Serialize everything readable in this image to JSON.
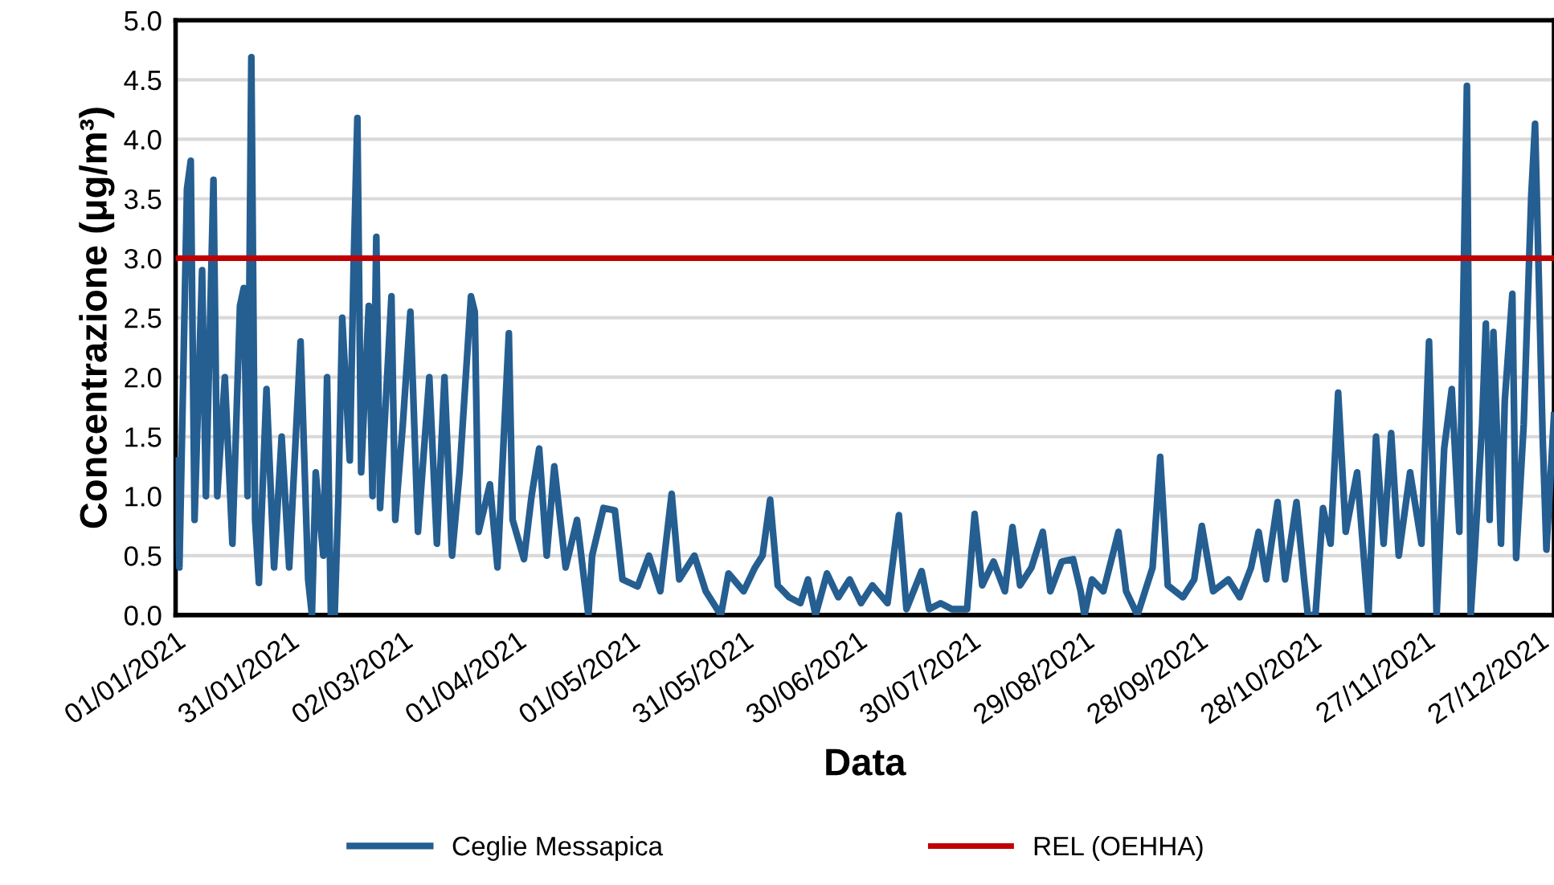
{
  "chart_data": {
    "type": "line",
    "xlabel": "Data",
    "ylabel": "Concentrazione (μg/m³)",
    "x": [
      "2021-01-01",
      "2021-01-02",
      "2021-01-04",
      "2021-01-05",
      "2021-01-06",
      "2021-01-08",
      "2021-01-09",
      "2021-01-11",
      "2021-01-12",
      "2021-01-14",
      "2021-01-16",
      "2021-01-18",
      "2021-01-19",
      "2021-01-20",
      "2021-01-21",
      "2021-01-22",
      "2021-01-23",
      "2021-01-25",
      "2021-01-27",
      "2021-01-29",
      "2021-01-31",
      "2021-02-03",
      "2021-02-05",
      "2021-02-06",
      "2021-02-07",
      "2021-02-09",
      "2021-02-10",
      "2021-02-11",
      "2021-02-12",
      "2021-02-13",
      "2021-02-14",
      "2021-02-16",
      "2021-02-17",
      "2021-02-18",
      "2021-02-19",
      "2021-02-21",
      "2021-02-22",
      "2021-02-23",
      "2021-02-24",
      "2021-02-27",
      "2021-02-28",
      "2021-03-02",
      "2021-03-04",
      "2021-03-06",
      "2021-03-09",
      "2021-03-11",
      "2021-03-13",
      "2021-03-15",
      "2021-03-17",
      "2021-03-20",
      "2021-03-21",
      "2021-03-22",
      "2021-03-25",
      "2021-03-27",
      "2021-03-30",
      "2021-03-31",
      "2021-04-03",
      "2021-04-05",
      "2021-04-07",
      "2021-04-09",
      "2021-04-11",
      "2021-04-14",
      "2021-04-17",
      "2021-04-20",
      "2021-04-21",
      "2021-04-24",
      "2021-04-27",
      "2021-04-29",
      "2021-05-03",
      "2021-05-06",
      "2021-05-09",
      "2021-05-12",
      "2021-05-14",
      "2021-05-18",
      "2021-05-21",
      "2021-05-25",
      "2021-05-27",
      "2021-05-31",
      "2021-06-03",
      "2021-06-05",
      "2021-06-07",
      "2021-06-09",
      "2021-06-12",
      "2021-06-15",
      "2021-06-17",
      "2021-06-19",
      "2021-06-22",
      "2021-06-25",
      "2021-06-28",
      "2021-07-01",
      "2021-07-04",
      "2021-07-08",
      "2021-07-11",
      "2021-07-13",
      "2021-07-17",
      "2021-07-19",
      "2021-07-22",
      "2021-07-25",
      "2021-07-29",
      "2021-07-31",
      "2021-08-02",
      "2021-08-05",
      "2021-08-08",
      "2021-08-10",
      "2021-08-12",
      "2021-08-15",
      "2021-08-18",
      "2021-08-20",
      "2021-08-23",
      "2021-08-26",
      "2021-08-28",
      "2021-08-29",
      "2021-08-31",
      "2021-09-03",
      "2021-09-07",
      "2021-09-09",
      "2021-09-12",
      "2021-09-14",
      "2021-09-16",
      "2021-09-18",
      "2021-09-20",
      "2021-09-24",
      "2021-09-27",
      "2021-09-29",
      "2021-10-02",
      "2021-10-06",
      "2021-10-09",
      "2021-10-12",
      "2021-10-14",
      "2021-10-16",
      "2021-10-19",
      "2021-10-21",
      "2021-10-24",
      "2021-10-26",
      "2021-10-27",
      "2021-10-29",
      "2021-10-31",
      "2021-11-02",
      "2021-11-04",
      "2021-11-06",
      "2021-11-09",
      "2021-11-11",
      "2021-11-12",
      "2021-11-14",
      "2021-11-16",
      "2021-11-18",
      "2021-11-20",
      "2021-11-23",
      "2021-11-26",
      "2021-11-28",
      "2021-11-30",
      "2021-12-02",
      "2021-12-04",
      "2021-12-06",
      "2021-12-08",
      "2021-12-09",
      "2021-12-10",
      "2021-12-12",
      "2021-12-13",
      "2021-12-14",
      "2021-12-15",
      "2021-12-17",
      "2021-12-18",
      "2021-12-20",
      "2021-12-21",
      "2021-12-23",
      "2021-12-25",
      "2021-12-26",
      "2021-12-28",
      "2021-12-29",
      "2021-12-31"
    ],
    "series": [
      {
        "name": "Ceglie Messapica",
        "color": "#255e91",
        "values": [
          1.3,
          0.4,
          3.58,
          3.82,
          0.8,
          2.9,
          1.0,
          3.66,
          1.0,
          2.0,
          0.6,
          2.6,
          2.75,
          1.0,
          4.69,
          0.8,
          0.27,
          1.9,
          0.4,
          1.5,
          0.4,
          2.3,
          0.3,
          0,
          1.2,
          0.5,
          2.0,
          0,
          0,
          1.0,
          2.5,
          1.3,
          2.92,
          4.18,
          1.2,
          2.6,
          1.0,
          3.18,
          0.9,
          2.68,
          0.8,
          1.6,
          2.55,
          0.7,
          2.0,
          0.6,
          2.0,
          0.5,
          1.2,
          2.68,
          2.55,
          0.7,
          1.1,
          0.4,
          2.37,
          0.8,
          0.47,
          1.0,
          1.4,
          0.5,
          1.25,
          0.4,
          0.8,
          0,
          0.5,
          0.9,
          0.88,
          0.3,
          0.24,
          0.5,
          0.2,
          1.02,
          0.3,
          0.5,
          0.2,
          0,
          0.35,
          0.2,
          0.4,
          0.5,
          0.97,
          0.25,
          0.15,
          0.1,
          0.3,
          0,
          0.35,
          0.15,
          0.3,
          0.1,
          0.25,
          0.1,
          0.84,
          0.05,
          0.37,
          0.05,
          0.1,
          0.05,
          0.05,
          0.85,
          0.25,
          0.45,
          0.2,
          0.74,
          0.25,
          0.4,
          0.7,
          0.2,
          0.45,
          0.47,
          0.2,
          0,
          0.3,
          0.2,
          0.7,
          0.2,
          0,
          0.2,
          0.4,
          1.33,
          0.25,
          0.15,
          0.3,
          0.75,
          0.2,
          0.3,
          0.15,
          0.4,
          0.7,
          0.3,
          0.95,
          0.3,
          0.95,
          0.3,
          0,
          0,
          0.9,
          0.6,
          1.87,
          0.7,
          1.2,
          0.4,
          0,
          1.5,
          0.6,
          1.53,
          0.5,
          1.2,
          0.6,
          2.3,
          0,
          1.4,
          1.9,
          0.7,
          4.45,
          0,
          0.5,
          1.6,
          2.45,
          0.8,
          2.38,
          0.6,
          1.8,
          2.7,
          0.48,
          1.6,
          3.53,
          4.13,
          1.5,
          0.55,
          1.68
        ]
      }
    ],
    "ref_lines": [
      {
        "axis": "y",
        "value": 3.0,
        "label": "REL (OEHHA)",
        "color": "#c00000"
      }
    ],
    "xlim": [
      "2021-01-01",
      "2021-12-31"
    ],
    "xticks": [
      {
        "value": "2021-01-01",
        "label": "01/01/2021"
      },
      {
        "value": "2021-01-31",
        "label": "31/01/2021"
      },
      {
        "value": "2021-03-02",
        "label": "02/03/2021"
      },
      {
        "value": "2021-04-01",
        "label": "01/04/2021"
      },
      {
        "value": "2021-05-01",
        "label": "01/05/2021"
      },
      {
        "value": "2021-05-31",
        "label": "31/05/2021"
      },
      {
        "value": "2021-06-30",
        "label": "30/06/2021"
      },
      {
        "value": "2021-07-30",
        "label": "30/07/2021"
      },
      {
        "value": "2021-08-29",
        "label": "29/08/2021"
      },
      {
        "value": "2021-09-28",
        "label": "28/09/2021"
      },
      {
        "value": "2021-10-28",
        "label": "28/10/2021"
      },
      {
        "value": "2021-11-27",
        "label": "27/11/2021"
      },
      {
        "value": "2021-12-27",
        "label": "27/12/2021"
      }
    ],
    "ylim": [
      0,
      5
    ],
    "yticks": [
      {
        "value": 0,
        "label": "0.0"
      },
      {
        "value": 0.5,
        "label": "0.5"
      },
      {
        "value": 1,
        "label": "1.0"
      },
      {
        "value": 1.5,
        "label": "1.5"
      },
      {
        "value": 2,
        "label": "2.0"
      },
      {
        "value": 2.5,
        "label": "2.5"
      },
      {
        "value": 3,
        "label": "3.0"
      },
      {
        "value": 3.5,
        "label": "3.5"
      },
      {
        "value": 4,
        "label": "4.0"
      },
      {
        "value": 4.5,
        "label": "4.5"
      },
      {
        "value": 5,
        "label": "5.0"
      }
    ],
    "grid": "y",
    "legend": "bottom",
    "marker": "none",
    "line_style": "solid"
  }
}
